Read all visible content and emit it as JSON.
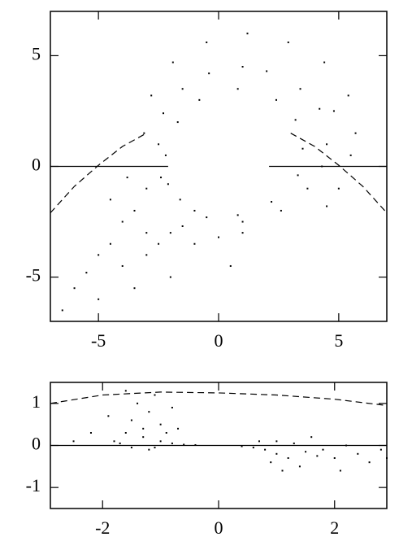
{
  "chart_data": [
    {
      "type": "scatter",
      "color": "#000000",
      "xlim": [
        -7,
        7
      ],
      "ylim": [
        -7,
        7
      ],
      "xticks": [
        -5,
        0,
        5
      ],
      "yticks": [
        -5,
        0,
        5
      ],
      "points": {
        "x": [
          5.7,
          5.4,
          4.4,
          2.9,
          1.2,
          -0.5,
          -1.9,
          -2.8,
          -3.1,
          4.5,
          4.2,
          3.4,
          2.0,
          1.0,
          -0.4,
          -1.5,
          -2.3,
          -2.5,
          -2.4,
          -1.6,
          -0.5,
          1.0,
          2.6,
          3.7,
          4.3,
          3.5,
          3.2,
          2.4,
          0.8,
          -0.8,
          -1.7,
          -2.2,
          -2.1,
          -1.0,
          0.8,
          2.2,
          3.3,
          -3.0,
          -3.5,
          -4.0,
          -3.0,
          -4.5,
          -5.0,
          -5.5,
          -6.0,
          -4.0,
          -3.0,
          -2.5,
          -2.0,
          -1.0,
          0.0,
          1.0,
          -1.5,
          -3.5,
          -5.0,
          -6.5,
          -2.0,
          0.5,
          -4.5,
          -3.8,
          5.0,
          4.5,
          5.5,
          4.8
        ],
        "y": [
          1.5,
          3.2,
          4.7,
          5.6,
          6.0,
          5.6,
          4.7,
          3.2,
          1.5,
          1.0,
          2.6,
          3.5,
          4.3,
          4.5,
          4.2,
          3.5,
          2.4,
          1.0,
          -0.5,
          -1.5,
          -2.3,
          -2.5,
          -2.0,
          -1.0,
          0.0,
          0.8,
          2.1,
          3.0,
          3.5,
          3.0,
          2.0,
          0.5,
          -0.8,
          -2.0,
          -2.2,
          -1.6,
          -0.4,
          -1.0,
          -2.0,
          -2.5,
          -3.0,
          -3.5,
          -4.0,
          -4.8,
          -5.5,
          -4.5,
          -4.0,
          -3.5,
          -3.0,
          -3.5,
          -3.2,
          -3.0,
          -2.7,
          -5.5,
          -6.0,
          -6.5,
          -5.0,
          -4.5,
          -1.5,
          -0.5,
          -1.0,
          -1.8,
          0.5,
          2.5
        ]
      },
      "lines": [
        {
          "dashed": true,
          "x": [
            -7,
            -6,
            -5,
            -4,
            -3,
            null,
            3,
            4,
            5,
            6,
            7
          ],
          "y": [
            -2.1,
            -0.9,
            0.05,
            0.9,
            1.5,
            null,
            1.5,
            0.9,
            0.05,
            -0.9,
            -2.1
          ]
        },
        {
          "dashed": false,
          "x": [
            -7,
            -2.1,
            null,
            2.1,
            7
          ],
          "y": [
            0,
            0,
            null,
            0,
            0
          ]
        }
      ]
    },
    {
      "type": "scatter",
      "color": "#000000",
      "xlim": [
        -2.9,
        2.9
      ],
      "ylim": [
        -1.5,
        1.5
      ],
      "xticks": [
        -2,
        0,
        2
      ],
      "yticks": [
        -1,
        0,
        1
      ],
      "points": {
        "x": [
          -1.8,
          -1.6,
          -1.5,
          -1.4,
          -1.6,
          -1.2,
          -1.0,
          -0.8,
          -1.1,
          -1.3,
          -1.2,
          -1.0,
          -0.8,
          -0.6,
          -0.4,
          -1.5,
          -1.7,
          -2.2,
          -2.5,
          -1.9,
          -0.9,
          -0.7,
          -1.3,
          -1.1,
          0.4,
          0.6,
          0.8,
          1.0,
          1.0,
          1.2,
          1.3,
          1.5,
          1.6,
          1.8,
          2.0,
          2.2,
          2.4,
          2.6,
          2.8,
          1.1,
          0.9,
          1.4,
          2.1,
          2.9,
          0.7,
          1.7
        ],
        "y": [
          0.1,
          0.3,
          0.6,
          1.0,
          1.3,
          0.8,
          0.5,
          0.9,
          1.2,
          0.2,
          -0.1,
          0.1,
          0.05,
          0.02,
          0.01,
          -0.05,
          0.05,
          0.3,
          0.1,
          0.7,
          0.3,
          0.4,
          0.4,
          -0.05,
          -0.02,
          -0.05,
          -0.1,
          0.1,
          -0.2,
          -0.3,
          0.05,
          -0.15,
          0.2,
          -0.1,
          -0.3,
          0.0,
          -0.2,
          -0.4,
          -0.1,
          -0.6,
          -0.4,
          -0.5,
          -0.6,
          -0.3,
          0.1,
          -0.25
        ]
      },
      "lines": [
        {
          "dashed": true,
          "x": [
            -2.9,
            -2,
            -1,
            0,
            1,
            2,
            2.9
          ],
          "y": [
            1.0,
            1.2,
            1.27,
            1.25,
            1.2,
            1.1,
            0.95
          ]
        },
        {
          "dashed": false,
          "x": [
            -2.9,
            2.9
          ],
          "y": [
            0,
            0
          ]
        }
      ]
    }
  ]
}
